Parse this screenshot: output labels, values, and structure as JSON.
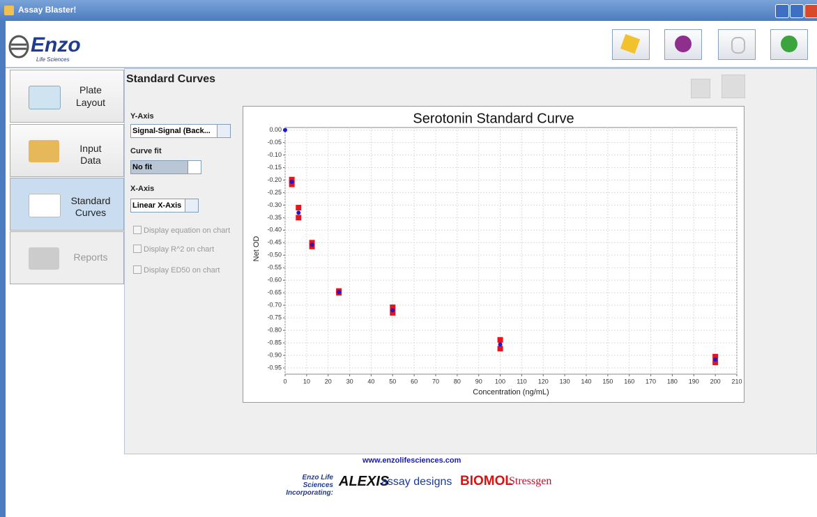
{
  "window": {
    "title": "Assay Blaster!"
  },
  "toolbar": {
    "logo": "Enzo",
    "logo_sub": "Life Sciences"
  },
  "nav": {
    "tabs": [
      {
        "lines": [
          "Plate",
          "Layout"
        ]
      },
      {
        "lines": [
          "Input",
          "Data"
        ]
      },
      {
        "lines": [
          "Standard",
          "Curves"
        ]
      },
      {
        "lines": [
          "Reports"
        ]
      }
    ]
  },
  "panel": {
    "heading": "Standard Curves",
    "y_axis_label": "Y-Axis",
    "y_axis_value": "Signal-Signal (Back...",
    "curve_fit_label": "Curve fit",
    "curve_fit_value": "No fit",
    "x_axis_label": "X-Axis",
    "x_axis_value": "Linear X-Axis",
    "checkboxes": [
      "Display equation on chart",
      "Display R^2 on chart",
      "Display ED50  on chart"
    ]
  },
  "chart_data": {
    "type": "scatter",
    "title": "Serotonin Standard Curve",
    "x_label": "Concentration (ng/mL)",
    "y_label": "Net OD",
    "xlim": [
      0,
      210
    ],
    "ylim": [
      -0.975,
      0.01
    ],
    "xticks": [
      0,
      10,
      20,
      30,
      40,
      50,
      60,
      70,
      80,
      90,
      100,
      110,
      120,
      130,
      140,
      150,
      160,
      170,
      180,
      190,
      200,
      210
    ],
    "yticks": [
      {
        "value": 0,
        "label": "0.00"
      },
      -0.05,
      {
        "value": -0.1,
        "label": "-0.10"
      },
      -0.15,
      {
        "value": -0.2,
        "label": "-0.20"
      },
      -0.25,
      {
        "value": -0.3,
        "label": "-0.30"
      },
      -0.35,
      {
        "value": -0.4,
        "label": "-0.40"
      },
      -0.45,
      {
        "value": -0.5,
        "label": "-0.50"
      },
      -0.55,
      {
        "value": -0.6,
        "label": "-0.60"
      },
      -0.65,
      {
        "value": -0.7,
        "label": "-0.70"
      },
      -0.75,
      {
        "value": -0.8,
        "label": "-0.80"
      },
      -0.85,
      {
        "value": -0.9,
        "label": "-0.90"
      },
      -0.95
    ],
    "grid": true,
    "series": [
      {
        "color": "#e8141c",
        "marker": "square",
        "x": [
          3.125,
          3.125,
          6.25,
          6.25,
          12.5,
          12.5,
          25,
          25,
          50,
          50,
          100,
          100,
          200,
          200
        ],
        "values": [
          -0.198,
          -0.217,
          -0.31,
          -0.35,
          -0.45,
          -0.465,
          -0.643,
          -0.65,
          -0.708,
          -0.73,
          -0.838,
          -0.873,
          -0.905,
          -0.928
        ]
      },
      {
        "color": "#1a1ad0",
        "marker": "circle",
        "x": [
          0,
          3.125,
          6.25,
          12.5,
          25,
          50,
          100,
          200
        ],
        "values": [
          0,
          -0.207,
          -0.33,
          -0.458,
          -0.647,
          -0.72,
          -0.856,
          -0.917
        ]
      }
    ]
  },
  "footer": {
    "url": "www.enzolifesciences.com",
    "enzo": "Enzo Life Sciences",
    "incorporating": "Incorporating:",
    "brands": [
      "ALEXIS",
      "assay designs",
      "BIOMOL",
      "Stressgen"
    ]
  }
}
